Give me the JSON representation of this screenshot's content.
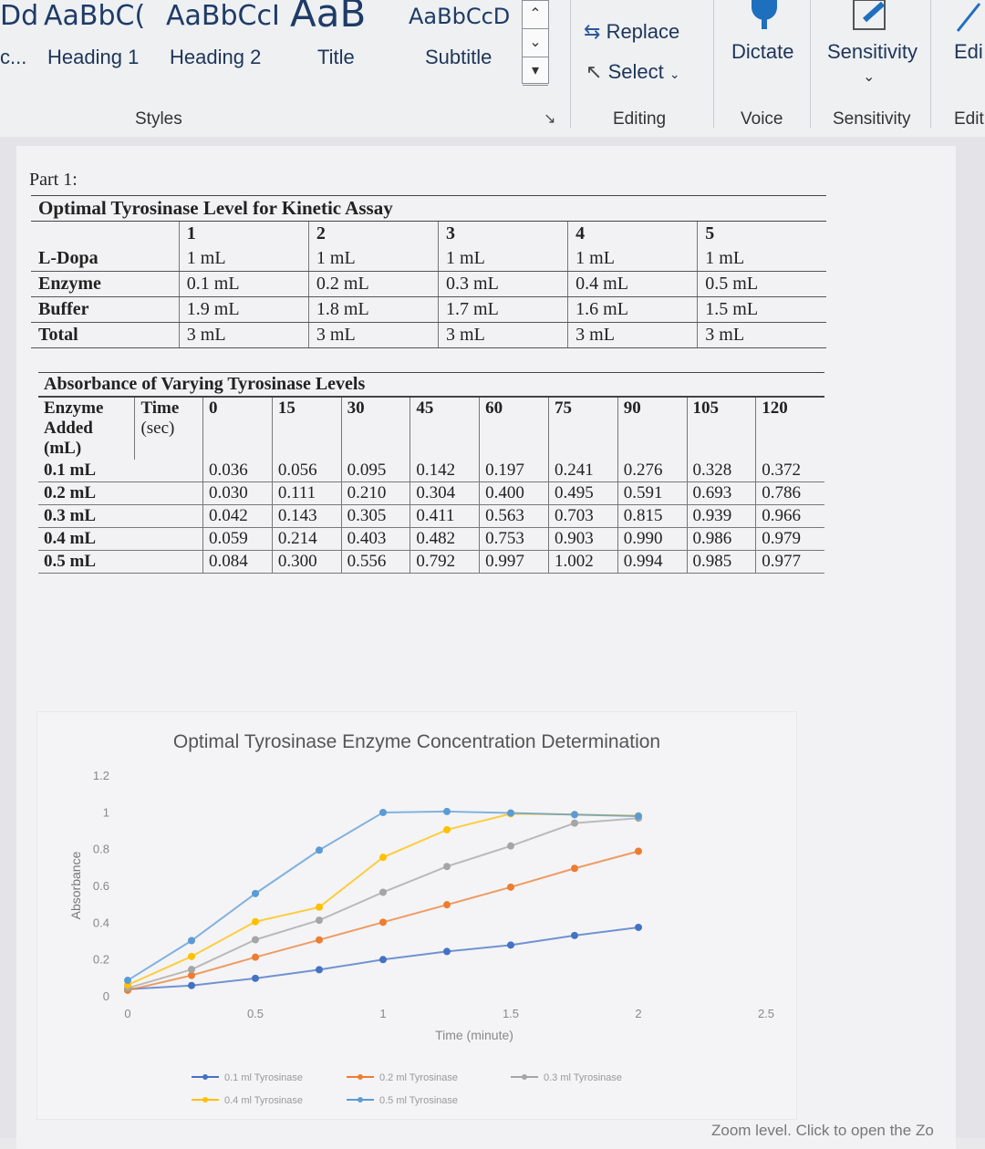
{
  "ribbon": {
    "style_previews": [
      "Dd",
      "AaBbC(",
      "AaBbCcI",
      "AaB",
      "AaBbCcD"
    ],
    "style_labels": [
      "c...",
      "Heading 1",
      "Heading 2",
      "Title",
      "Subtitle"
    ],
    "styles_group": "Styles",
    "replace": "Replace",
    "select": "Select",
    "editing_group": "Editing",
    "dictate": "Dictate",
    "voice_group": "Voice",
    "sensitivity": "Sensitivity",
    "sensitivity_group": "Sensitivity",
    "edit_btn": "Edi",
    "edit_group": "Edit"
  },
  "doc": {
    "part": "Part 1:",
    "table1": {
      "title": "Optimal Tyrosinase Level for Kinetic Assay",
      "header": [
        "",
        "1",
        "2",
        "3",
        "4",
        "5"
      ],
      "rows": [
        [
          "L-Dopa",
          "1 mL",
          "1 mL",
          "1 mL",
          "1 mL",
          "1 mL"
        ],
        [
          "Enzyme",
          "0.1 mL",
          "0.2 mL",
          "0.3 mL",
          "0.4 mL",
          "0.5 mL"
        ],
        [
          "Buffer",
          "1.9 mL",
          "1.8 mL",
          "1.7 mL",
          "1.6 mL",
          "1.5 mL"
        ],
        [
          "Total",
          "3 mL",
          "3 mL",
          "3 mL",
          "3 mL",
          "3 mL"
        ]
      ]
    },
    "table2": {
      "title": "Absorbance of Varying Tyrosinase Levels",
      "h1": "Enzyme",
      "h2": "Time",
      "h3": "Added",
      "h4": "(sec)",
      "h5": "(mL)",
      "times": [
        "0",
        "15",
        "30",
        "45",
        "60",
        "75",
        "90",
        "105",
        "120"
      ],
      "rows": [
        [
          "0.1 mL",
          "0.036",
          "0.056",
          "0.095",
          "0.142",
          "0.197",
          "0.241",
          "0.276",
          "0.328",
          "0.372"
        ],
        [
          "0.2 mL",
          "0.030",
          "0.111",
          "0.210",
          "0.304",
          "0.400",
          "0.495",
          "0.591",
          "0.693",
          "0.786"
        ],
        [
          "0.3 mL",
          "0.042",
          "0.143",
          "0.305",
          "0.411",
          "0.563",
          "0.703",
          "0.815",
          "0.939",
          "0.966"
        ],
        [
          "0.4 mL",
          "0.059",
          "0.214",
          "0.403",
          "0.482",
          "0.753",
          "0.903",
          "0.990",
          "0.986",
          "0.979"
        ],
        [
          "0.5 mL",
          "0.084",
          "0.300",
          "0.556",
          "0.792",
          "0.997",
          "1.002",
          "0.994",
          "0.985",
          "0.977"
        ]
      ]
    },
    "zoom_hint": "Zoom level. Click to open the Zo"
  },
  "chart_data": {
    "type": "line",
    "title": "Optimal Tyrosinase Enzyme Concentration Determination",
    "xlabel": "Time (minute)",
    "ylabel": "Absorbance",
    "xlim": [
      0,
      2.5
    ],
    "ylim": [
      0,
      1.2
    ],
    "xticks": [
      "0",
      "0.5",
      "1",
      "1.5",
      "2",
      "2.5"
    ],
    "yticks": [
      "0",
      "0.2",
      "0.4",
      "0.6",
      "0.8",
      "1",
      "1.2"
    ],
    "x": [
      0,
      0.25,
      0.5,
      0.75,
      1,
      1.25,
      1.5,
      1.75,
      2
    ],
    "series": [
      {
        "name": "0.1 ml Tyrosinase",
        "color": "#4472c4",
        "values": [
          0.036,
          0.056,
          0.095,
          0.142,
          0.197,
          0.241,
          0.276,
          0.328,
          0.372
        ]
      },
      {
        "name": "0.2 ml Tyrosinase",
        "color": "#ed7d31",
        "values": [
          0.03,
          0.111,
          0.21,
          0.304,
          0.4,
          0.495,
          0.591,
          0.693,
          0.786
        ]
      },
      {
        "name": "0.3 ml Tyrosinase",
        "color": "#a5a5a5",
        "values": [
          0.042,
          0.143,
          0.305,
          0.411,
          0.563,
          0.703,
          0.815,
          0.939,
          0.966
        ]
      },
      {
        "name": "0.4 ml Tyrosinase",
        "color": "#ffc000",
        "values": [
          0.059,
          0.214,
          0.403,
          0.482,
          0.753,
          0.903,
          0.99,
          0.986,
          0.979
        ]
      },
      {
        "name": "0.5 ml Tyrosinase",
        "color": "#5b9bd5",
        "values": [
          0.084,
          0.3,
          0.556,
          0.792,
          0.997,
          1.002,
          0.994,
          0.985,
          0.977
        ]
      }
    ],
    "legend": "bottom",
    "grid": false
  }
}
